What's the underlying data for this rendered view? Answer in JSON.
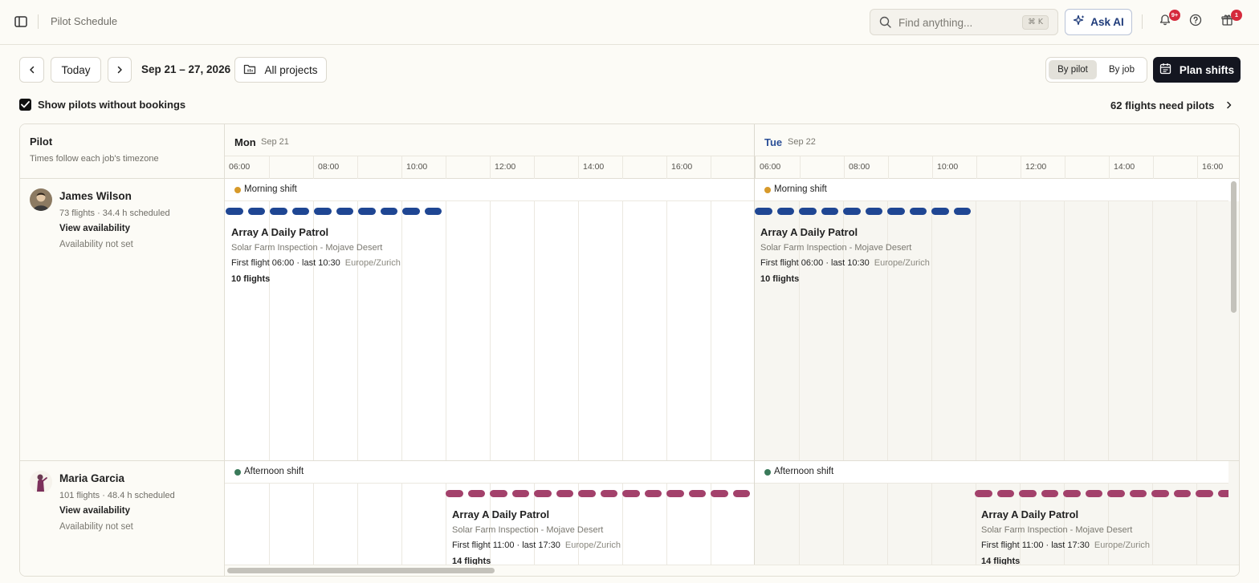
{
  "header": {
    "title": "Pilot Schedule",
    "search": {
      "placeholder": "Find anything...",
      "shortcut": "⌘ K"
    },
    "ask_ai": "Ask AI",
    "notifications_badge": "9+",
    "gift_badge": "1"
  },
  "toolbar": {
    "today": "Today",
    "date_range": "Sep 21 – 27, 2026",
    "projects": "All projects",
    "view_by_pilot": "By pilot",
    "view_by_job": "By job",
    "active_view": "By pilot",
    "plan_shifts": "Plan shifts",
    "show_without_bookings": "Show pilots without bookings",
    "show_without_bookings_checked": true,
    "need_pilots": "62 flights need pilots"
  },
  "grid": {
    "pilot_col_title": "Pilot",
    "pilot_col_subtitle": "Times follow each job's timezone",
    "days": [
      {
        "name": "Mon",
        "date": "Sep 21",
        "color": "#1c1c1c"
      },
      {
        "name": "Tue",
        "date": "Sep 22",
        "color": "#2b4f97"
      }
    ],
    "hours": [
      "06:00",
      "",
      "08:00",
      "",
      "10:00",
      "",
      "12:00",
      "",
      "14:00",
      "",
      "16:00",
      ""
    ]
  },
  "pilots": [
    {
      "name": "James Wilson",
      "stats": "73 flights · 34.4 h scheduled",
      "view": "View availability",
      "availability": "Availability not set",
      "shift": "Morning shift",
      "shift_color": "#d79a2b",
      "flight_color": "#1f4693",
      "jobs": [
        {
          "title": "Array A Daily Patrol",
          "subtitle": "Solar Farm Inspection - Mojave Desert",
          "times": "First flight 06:00 · last 10:30",
          "tz": "Europe/Zurich",
          "count": "10 flights"
        },
        {
          "title": "Array A Daily Patrol",
          "subtitle": "Solar Farm Inspection - Mojave Desert",
          "times": "First flight 06:00 · last 10:30",
          "tz": "Europe/Zurich",
          "count": "10 flights"
        }
      ]
    },
    {
      "name": "Maria Garcia",
      "stats": "101 flights · 48.4 h scheduled",
      "view": "View availability",
      "availability": "Availability not set",
      "shift": "Afternoon shift",
      "shift_color": "#3a7a5a",
      "flight_color": "#a3416b",
      "jobs": [
        {
          "title": "Array A Daily Patrol",
          "subtitle": "Solar Farm Inspection - Mojave Desert",
          "times": "First flight 11:00 · last 17:30",
          "tz": "Europe/Zurich",
          "count": "14 flights"
        },
        {
          "title": "Array A Daily Patrol",
          "subtitle": "Solar Farm Inspection - Mojave Desert",
          "times": "First flight 11:00 · last 17:30",
          "tz": "Europe/Zurich",
          "count": "14 flights"
        }
      ]
    }
  ]
}
